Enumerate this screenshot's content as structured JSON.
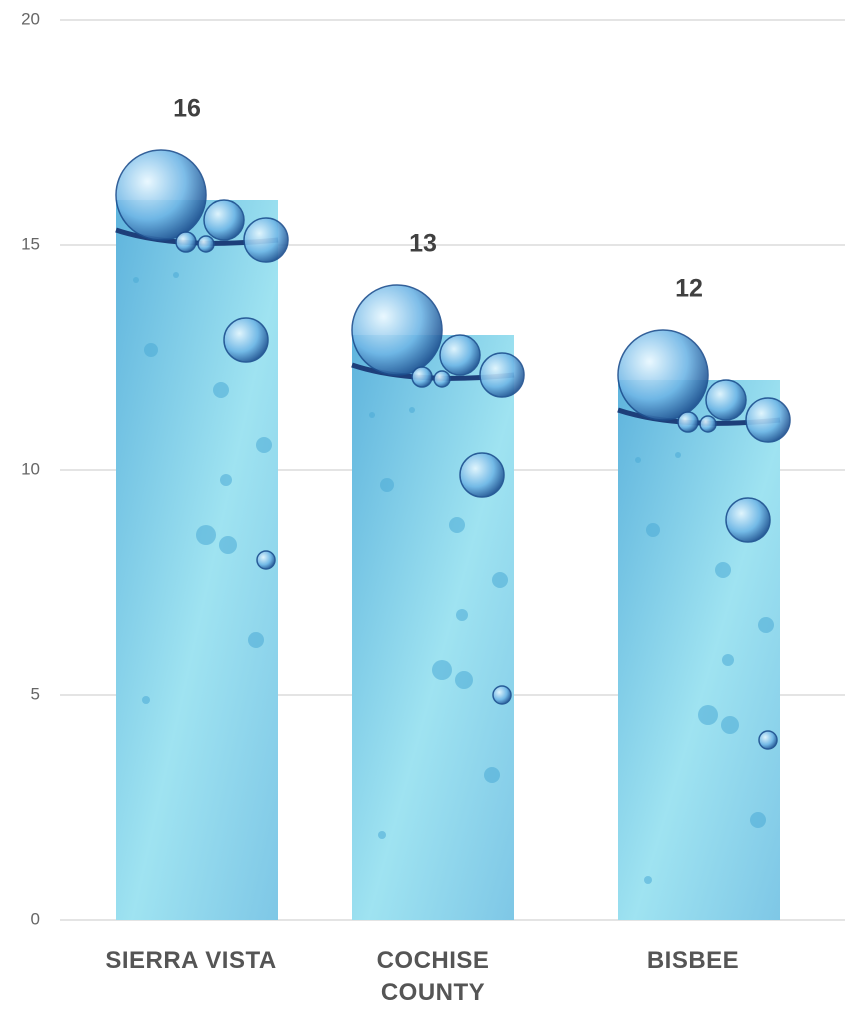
{
  "chart_data": {
    "type": "bar",
    "categories": [
      "SIERRA VISTA",
      "COCHISE COUNTY",
      "BISBEE"
    ],
    "values": [
      16,
      13,
      12
    ],
    "color": "#9fe3f1",
    "ylim": [
      0,
      20
    ],
    "yticks": [
      0,
      5,
      10,
      15,
      20
    ],
    "grid": true
  }
}
